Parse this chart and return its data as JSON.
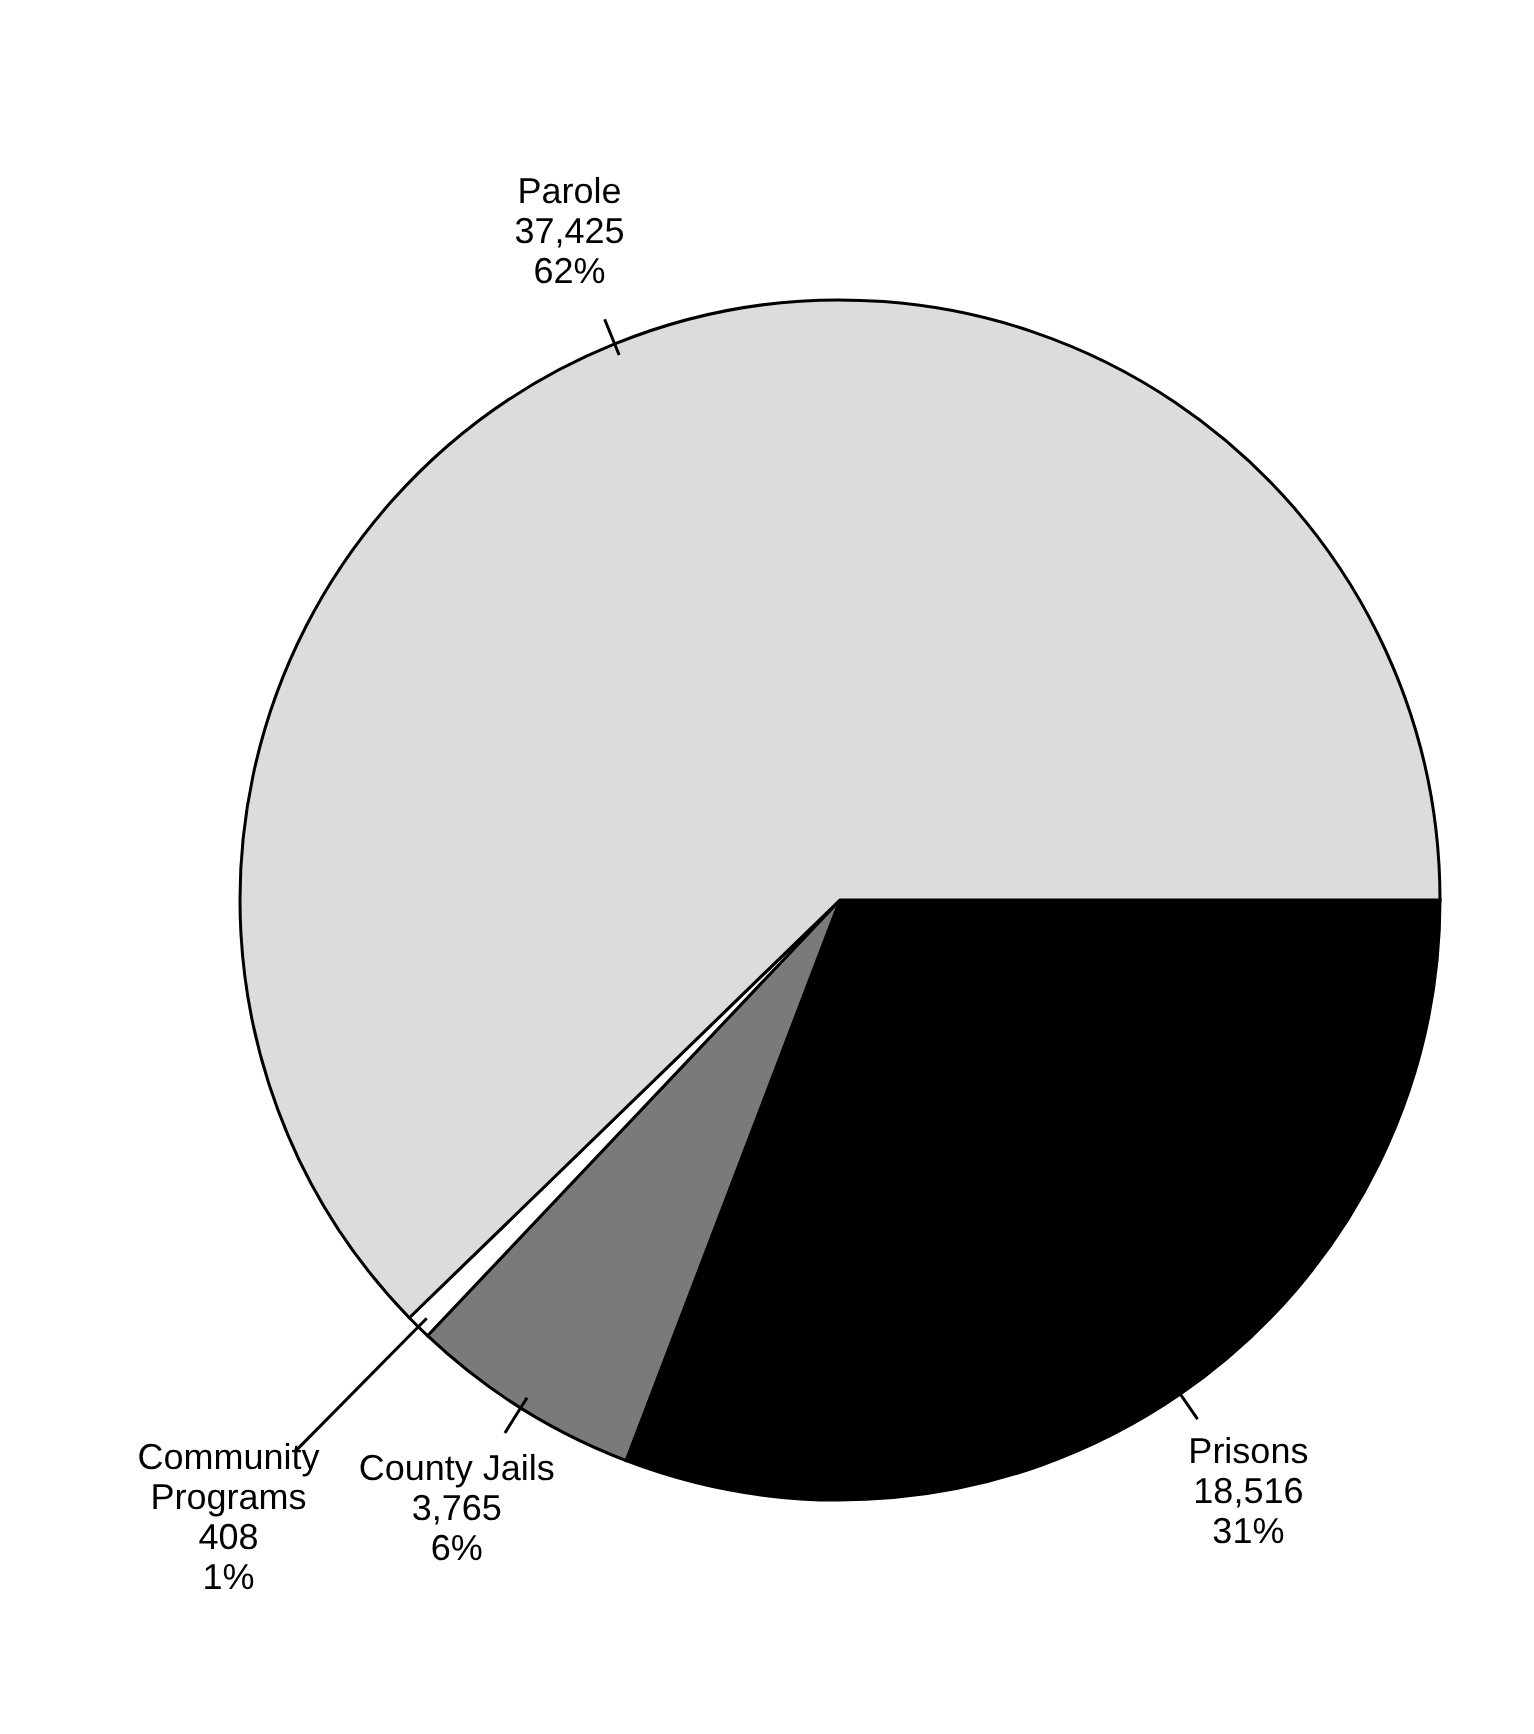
{
  "chart_data": {
    "type": "pie",
    "categories": [
      "Prisons",
      "County Jails",
      "Community Programs",
      "Parole"
    ],
    "values": [
      18516,
      3765,
      408,
      37425
    ],
    "value_labels": [
      "18,516\n31%",
      "3,765\n6%",
      "408\n1%",
      "37,425\n62%"
    ],
    "colors": [
      "#000000",
      "#7a7a7a",
      "#ffffff",
      "#dcdcdc"
    ]
  }
}
